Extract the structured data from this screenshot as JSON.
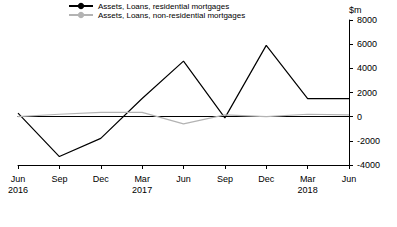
{
  "chart_data": {
    "type": "line",
    "ylabel": "$m",
    "categories": [
      "Jun\n2016",
      "Sep",
      "Dec",
      "Mar\n2017",
      "Jun",
      "Sep",
      "Dec",
      "Mar\n2018",
      "Jun"
    ],
    "series": [
      {
        "name": "Assets, Loans, residential mortgages",
        "color": "#000000",
        "values": [
          300,
          -3300,
          -1800,
          1500,
          4600,
          -100,
          5900,
          1500,
          1500
        ]
      },
      {
        "name": "Assets, Loans, non-residential mortgages",
        "color": "#b3b3b3",
        "values": [
          0,
          200,
          350,
          350,
          -600,
          150,
          0,
          200,
          150
        ]
      }
    ],
    "ylim": [
      -4000,
      8000
    ],
    "yticks": [
      -4000,
      -2000,
      0,
      2000,
      4000,
      6000,
      8000
    ],
    "grid": false,
    "legend": "top"
  }
}
